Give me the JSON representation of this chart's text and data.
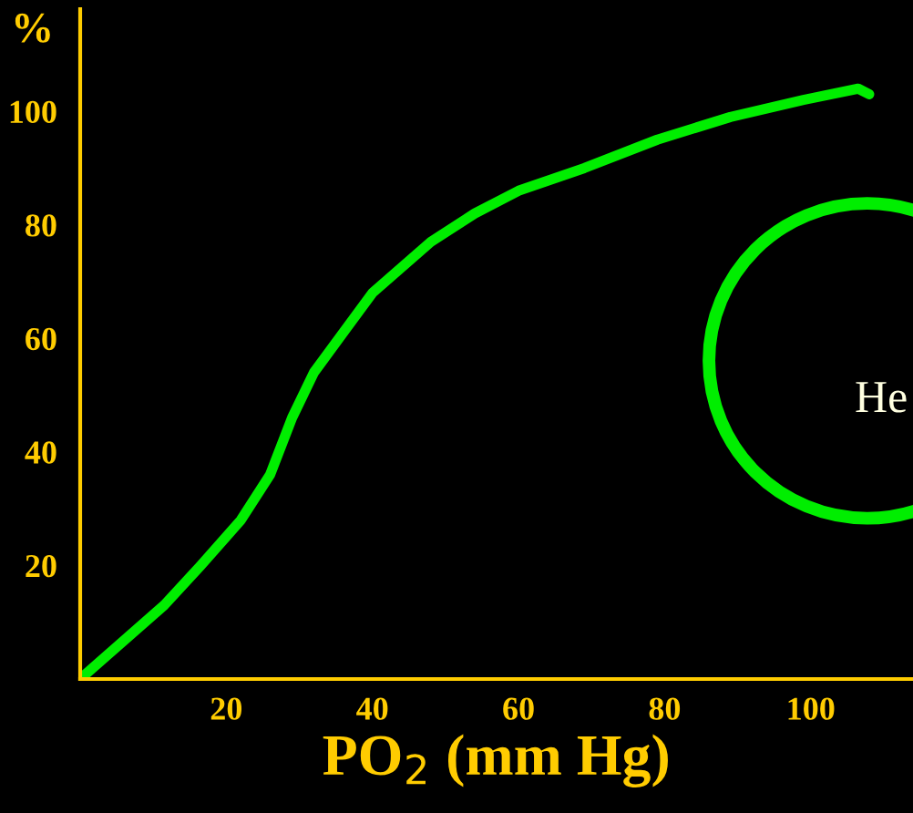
{
  "chart_data": {
    "type": "line",
    "xlabel": "PO$_{2}$ (mm Hg)",
    "ylabel": "%",
    "annotations": [
      "He"
    ],
    "x": [
      0,
      11.5,
      16.5,
      22,
      26,
      29,
      32,
      36,
      40,
      48,
      54,
      60,
      69,
      79,
      89,
      99,
      106.5,
      108
    ],
    "series": [
      {
        "color": "#00ee00",
        "values": [
          0,
          13,
          20,
          28,
          36,
          46,
          54,
          61,
          68,
          77,
          82,
          86,
          90,
          95,
          99,
          102,
          104,
          103
        ]
      }
    ],
    "xlim": [
      0,
      114
    ],
    "ylim": [
      0,
      118
    ],
    "xticks": [
      20,
      40,
      60,
      80,
      100
    ],
    "yticks": [
      20,
      40,
      60,
      80,
      100
    ],
    "grid": false,
    "legend": false,
    "marker": "none",
    "line_style": "solid"
  }
}
